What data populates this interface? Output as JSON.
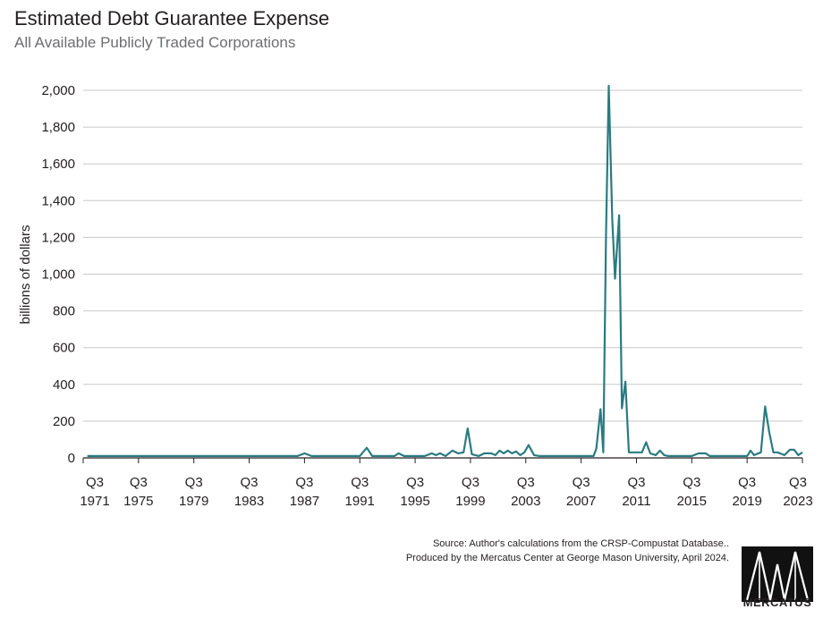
{
  "header": {
    "title": "Estimated Debt Guarantee Expense",
    "subtitle": "All Available Publicly Traded Corporations"
  },
  "footer": {
    "source_line1": "Source: Author's calculations from the CRSP-Compustat Database..",
    "source_line2": "Produced by the Mercatus Center at George Mason University, April 2024.",
    "logo_text": "MERCATUS"
  },
  "colors": {
    "line": "#2a7b80",
    "grid": "#c8c8c8",
    "axis": "#231f20"
  },
  "chart_data": {
    "type": "line",
    "title": "Estimated Debt Guarantee Expense",
    "subtitle": "All Available Publicly Traded Corporations",
    "ylabel": "billions of dollars",
    "xlabel": "",
    "ylim": [
      0,
      2000
    ],
    "xlim": [
      1971.5,
      2023.5
    ],
    "grid": true,
    "yticks": [
      "0",
      "200",
      "400",
      "600",
      "800",
      "1,000",
      "1,200",
      "1,400",
      "1,600",
      "1,800",
      "2,000"
    ],
    "xtick_labels": [
      {
        "q": "Q3",
        "year": "1971"
      },
      {
        "q": "Q3",
        "year": "1975"
      },
      {
        "q": "Q3",
        "year": "1979"
      },
      {
        "q": "Q3",
        "year": "1983"
      },
      {
        "q": "Q3",
        "year": "1987"
      },
      {
        "q": "Q3",
        "year": "1991"
      },
      {
        "q": "Q3",
        "year": "1995"
      },
      {
        "q": "Q3",
        "year": "1999"
      },
      {
        "q": "Q3",
        "year": "2003"
      },
      {
        "q": "Q3",
        "year": "2007"
      },
      {
        "q": "Q3",
        "year": "2011"
      },
      {
        "q": "Q3",
        "year": "2015"
      },
      {
        "q": "Q3",
        "year": "2019"
      },
      {
        "q": "Q3",
        "year": "2023"
      }
    ],
    "series": [
      {
        "values": [
          [
            1971.8,
            10
          ],
          [
            1987.0,
            10
          ],
          [
            1987.5,
            25
          ],
          [
            1988.0,
            10
          ],
          [
            1991.5,
            10
          ],
          [
            1992.0,
            55
          ],
          [
            1992.4,
            10
          ],
          [
            1994.0,
            10
          ],
          [
            1994.3,
            25
          ],
          [
            1994.7,
            10
          ],
          [
            1996.2,
            10
          ],
          [
            1996.7,
            25
          ],
          [
            1997.0,
            15
          ],
          [
            1997.3,
            25
          ],
          [
            1997.7,
            10
          ],
          [
            1998.2,
            40
          ],
          [
            1998.6,
            25
          ],
          [
            1999.0,
            30
          ],
          [
            1999.3,
            160
          ],
          [
            1999.6,
            20
          ],
          [
            2000.1,
            10
          ],
          [
            2000.5,
            25
          ],
          [
            2001.0,
            25
          ],
          [
            2001.3,
            15
          ],
          [
            2001.6,
            40
          ],
          [
            2001.9,
            25
          ],
          [
            2002.2,
            40
          ],
          [
            2002.5,
            25
          ],
          [
            2002.8,
            35
          ],
          [
            2003.1,
            15
          ],
          [
            2003.4,
            30
          ],
          [
            2003.7,
            70
          ],
          [
            2004.1,
            15
          ],
          [
            2004.5,
            10
          ],
          [
            2008.4,
            10
          ],
          [
            2008.6,
            50
          ],
          [
            2008.9,
            265
          ],
          [
            2009.1,
            30
          ],
          [
            2009.3,
            1200
          ],
          [
            2009.5,
            2025
          ],
          [
            2009.75,
            1300
          ],
          [
            2009.95,
            975
          ],
          [
            2010.25,
            1320
          ],
          [
            2010.45,
            270
          ],
          [
            2010.7,
            415
          ],
          [
            2010.95,
            30
          ],
          [
            2011.3,
            30
          ],
          [
            2011.9,
            30
          ],
          [
            2012.2,
            85
          ],
          [
            2012.5,
            25
          ],
          [
            2012.9,
            15
          ],
          [
            2013.2,
            40
          ],
          [
            2013.5,
            15
          ],
          [
            2013.8,
            10
          ],
          [
            2015.5,
            10
          ],
          [
            2016.0,
            25
          ],
          [
            2016.5,
            25
          ],
          [
            2016.8,
            10
          ],
          [
            2019.5,
            10
          ],
          [
            2019.75,
            40
          ],
          [
            2020.0,
            15
          ],
          [
            2020.5,
            30
          ],
          [
            2020.8,
            280
          ],
          [
            2021.1,
            140
          ],
          [
            2021.4,
            30
          ],
          [
            2021.7,
            30
          ],
          [
            2022.2,
            15
          ],
          [
            2022.6,
            45
          ],
          [
            2022.9,
            45
          ],
          [
            2023.2,
            15
          ],
          [
            2023.5,
            30
          ]
        ]
      }
    ]
  }
}
